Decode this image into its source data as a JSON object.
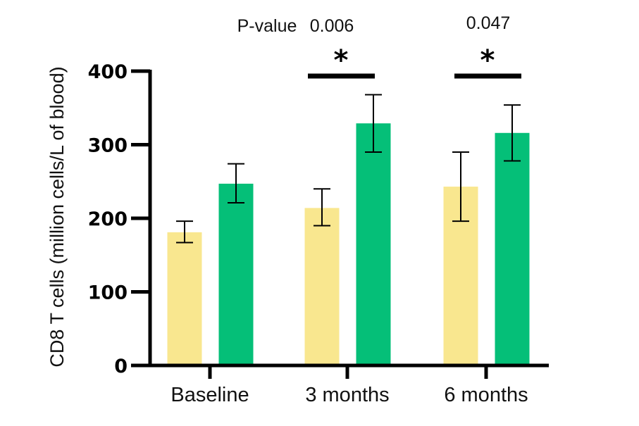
{
  "chart_data": {
    "type": "bar",
    "title": "",
    "xlabel": "",
    "ylabel": "CD8 T cells (million cells/L of blood)",
    "ylim": [
      0,
      400
    ],
    "yticks": [
      "0",
      "100",
      "200",
      "300",
      "400"
    ],
    "categories": [
      "Baseline",
      "3 months",
      "6 months"
    ],
    "series": [
      {
        "color": "#f9e78f",
        "values": [
          181,
          214,
          243
        ],
        "err_low": [
          167,
          190,
          196
        ],
        "err_high": [
          196,
          240,
          290
        ]
      },
      {
        "color": "#05bf78",
        "values": [
          247,
          329,
          316
        ],
        "err_low": [
          221,
          290,
          278
        ],
        "err_high": [
          274,
          368,
          354
        ]
      }
    ],
    "annotations": {
      "pvalue_label": "P-value",
      "pvalues": [
        "0.006",
        "0.047"
      ],
      "significance": [
        "*",
        "*"
      ]
    },
    "grid": false,
    "legend": "none"
  }
}
